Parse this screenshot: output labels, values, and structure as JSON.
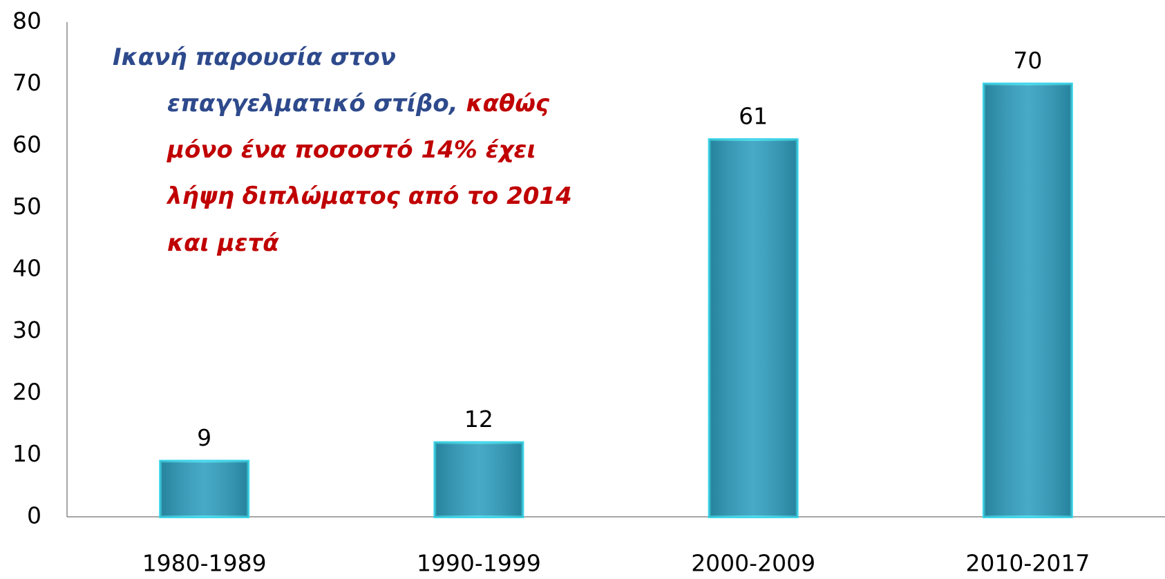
{
  "chart_data": {
    "type": "bar",
    "categories": [
      "1980-1989",
      "1990-1999",
      "2000-2009",
      "2010-2017"
    ],
    "values": [
      9,
      12,
      61,
      70
    ],
    "color": "#2e9ebf",
    "ylim": [
      0,
      80
    ],
    "yticks": [
      0,
      10,
      20,
      30,
      40,
      50,
      60,
      70,
      80
    ],
    "grid": false,
    "annotation": [
      [
        {
          "text": "Ικανή παρουσία στον",
          "color": "#2e4a8c"
        }
      ],
      [
        {
          "text": "επαγγελματικό στίβο, ",
          "color": "#2e4a8c"
        },
        {
          "text": "καθώς",
          "color": "#c00000"
        }
      ],
      [
        {
          "text": "μόνο ένα ποσοστό 14% έχει",
          "color": "#c00000"
        }
      ],
      [
        {
          "text": "λήψη διπλώματος από το 2014",
          "color": "#c00000"
        }
      ],
      [
        {
          "text": "και μετά",
          "color": "#c00000"
        }
      ]
    ]
  }
}
